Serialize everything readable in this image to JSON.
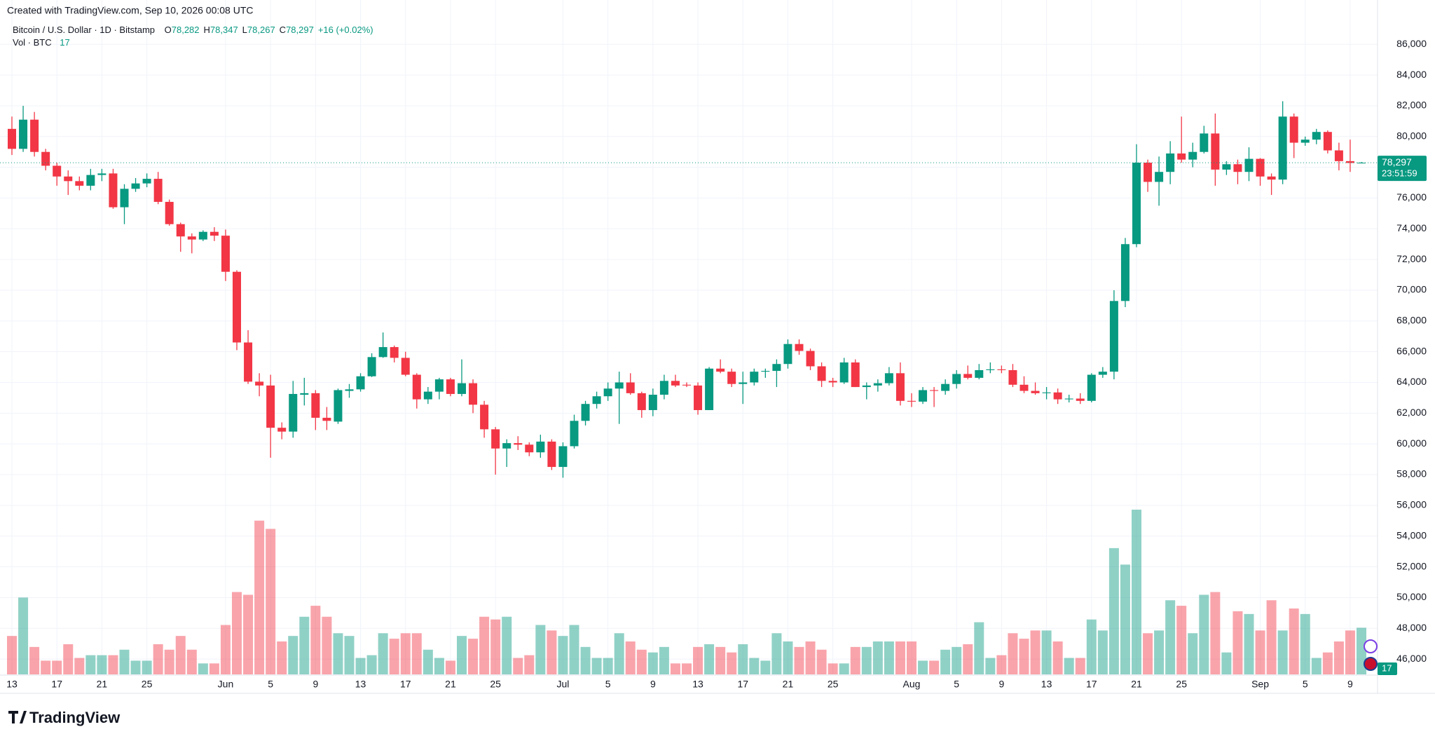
{
  "header": {
    "created": "Created with TradingView.com, Sep 10, 2026 00:08 UTC",
    "symbol": "Bitcoin / U.S. Dollar · 1D · Bitstamp",
    "ohlc": [
      {
        "key": "O",
        "value": "78,282"
      },
      {
        "key": "H",
        "value": "78,347"
      },
      {
        "key": "L",
        "value": "78,267"
      },
      {
        "key": "C",
        "value": "78,297"
      }
    ],
    "change": "+16 (+0.02%)",
    "volume_label": "Vol · BTC",
    "volume_value": "17"
  },
  "footer": {
    "brand": "TradingView"
  },
  "chart_data": {
    "type": "candlestick",
    "up_color": "#089981",
    "down_color": "#f23645",
    "grid": true,
    "categories": [
      "13",
      null,
      null,
      null,
      "17",
      null,
      null,
      null,
      "21",
      null,
      null,
      null,
      "25",
      null,
      null,
      null,
      null,
      null,
      null,
      "Jun",
      null,
      null,
      null,
      "5",
      null,
      null,
      null,
      "9",
      null,
      null,
      null,
      "13",
      null,
      null,
      null,
      "17",
      null,
      null,
      null,
      "21",
      null,
      null,
      null,
      "25",
      null,
      null,
      null,
      null,
      null,
      "Jul",
      null,
      null,
      null,
      "5",
      null,
      null,
      null,
      "9",
      null,
      null,
      null,
      "13",
      null,
      null,
      null,
      "17",
      null,
      null,
      null,
      "21",
      null,
      null,
      null,
      "25",
      null,
      null,
      null,
      null,
      null,
      null,
      "Aug",
      null,
      null,
      null,
      "5",
      null,
      null,
      null,
      "9",
      null,
      null,
      null,
      "13",
      null,
      null,
      null,
      "17",
      null,
      null,
      null,
      "21",
      null,
      null,
      null,
      "25",
      null,
      null,
      null,
      null,
      null,
      null,
      "Sep",
      null,
      null,
      null,
      "5",
      null,
      null,
      null,
      "9",
      null
    ],
    "open": [
      80500,
      79200,
      81100,
      79000,
      78100,
      77400,
      77100,
      76800,
      77500,
      77600,
      75400,
      76600,
      76950,
      77250,
      75750,
      74300,
      73500,
      73300,
      73800,
      73550,
      71200,
      66600,
      64050,
      63800,
      61050,
      60800,
      63200,
      63300,
      61700,
      61450,
      63450,
      63550,
      64400,
      65650,
      66300,
      65600,
      64500,
      62900,
      63400,
      64200,
      63250,
      63950,
      62550,
      60950,
      59700,
      60050,
      59950,
      59450,
      60150,
      58500,
      59850,
      61500,
      62600,
      63100,
      63600,
      64000,
      63300,
      62200,
      63200,
      64100,
      63850,
      63800,
      62200,
      64900,
      64700,
      63900,
      64000,
      64700,
      64750,
      65200,
      66500,
      66050,
      65050,
      64100,
      64000,
      65300,
      63700,
      63800,
      63950,
      64600,
      62800,
      62750,
      63500,
      63450,
      63900,
      64550,
      64300,
      64800,
      64850,
      64800,
      63850,
      63450,
      63300,
      63350,
      62900,
      62950,
      62800,
      64500,
      64700,
      69300,
      73000,
      78300,
      77050,
      77700,
      78900,
      78500,
      79000,
      80200,
      77850,
      78200,
      77700,
      78550,
      77400,
      77200,
      81300,
      79600,
      79800,
      80300,
      79100,
      78400,
      78282
    ],
    "high": [
      81300,
      82000,
      81600,
      79200,
      78300,
      77800,
      77400,
      77900,
      77900,
      77900,
      76900,
      77300,
      77600,
      77700,
      75900,
      74400,
      73700,
      73900,
      74100,
      73950,
      71300,
      67400,
      64600,
      64500,
      61400,
      64100,
      64300,
      63500,
      62400,
      63600,
      63900,
      64600,
      65900,
      67250,
      66400,
      66000,
      64600,
      63700,
      64300,
      64300,
      65500,
      64200,
      62800,
      61100,
      60300,
      60500,
      60100,
      60600,
      60300,
      60100,
      61900,
      62800,
      63400,
      64000,
      64700,
      64600,
      63400,
      63600,
      64500,
      64500,
      64000,
      64000,
      65000,
      65500,
      64900,
      64700,
      64900,
      64900,
      65500,
      66800,
      66800,
      66200,
      65300,
      64300,
      65600,
      65500,
      64000,
      64200,
      65000,
      65300,
      63300,
      63700,
      63700,
      64200,
      64800,
      65100,
      65200,
      65300,
      65100,
      65200,
      64400,
      64000,
      63700,
      63600,
      63200,
      63300,
      64600,
      65000,
      70000,
      73400,
      79500,
      78500,
      78700,
      79700,
      81300,
      79600,
      80700,
      81500,
      78400,
      78500,
      79300,
      78600,
      77600,
      82300,
      81500,
      80000,
      80500,
      80400,
      79600,
      79800,
      78347
    ],
    "low": [
      78800,
      79000,
      78700,
      77800,
      76800,
      76200,
      76500,
      76500,
      77100,
      75300,
      74300,
      76400,
      76700,
      75600,
      74200,
      72500,
      72400,
      73200,
      73200,
      70600,
      66100,
      63900,
      63100,
      59100,
      60300,
      60400,
      62500,
      60900,
      60900,
      61300,
      63000,
      63400,
      64350,
      65600,
      65300,
      64400,
      62300,
      62600,
      62900,
      63100,
      63100,
      62000,
      60400,
      58000,
      58500,
      59600,
      59200,
      59100,
      58300,
      57800,
      59700,
      61200,
      62300,
      62800,
      61300,
      63200,
      61700,
      61800,
      62900,
      63700,
      63700,
      61900,
      62200,
      64600,
      63700,
      62600,
      63800,
      64300,
      63700,
      64900,
      65800,
      64800,
      63700,
      63700,
      63900,
      63700,
      62900,
      63400,
      63800,
      62500,
      62400,
      62600,
      62400,
      63200,
      63600,
      64200,
      64200,
      64600,
      64600,
      63700,
      63300,
      63200,
      62900,
      62600,
      62700,
      62600,
      62700,
      64300,
      64200,
      68900,
      72800,
      76400,
      75500,
      76900,
      78300,
      78000,
      78900,
      76800,
      77500,
      76900,
      77100,
      76800,
      76200,
      76900,
      78600,
      79400,
      79500,
      78900,
      77800,
      77700,
      78267
    ],
    "close": [
      79200,
      81100,
      79000,
      78100,
      77400,
      77100,
      76800,
      77500,
      77600,
      75400,
      76600,
      76950,
      77250,
      75750,
      74300,
      73500,
      73300,
      73800,
      73550,
      71200,
      66600,
      64050,
      63800,
      61050,
      60800,
      63250,
      63300,
      61700,
      61500,
      63500,
      63550,
      64400,
      65650,
      66300,
      65600,
      64500,
      62900,
      63400,
      64200,
      63250,
      63950,
      62550,
      60950,
      59700,
      60050,
      59950,
      59450,
      60150,
      58500,
      59850,
      61500,
      62600,
      63100,
      63600,
      64000,
      63300,
      62200,
      63200,
      64100,
      63800,
      63800,
      62200,
      64900,
      64700,
      63900,
      64000,
      64700,
      64750,
      65200,
      66500,
      66050,
      65050,
      64100,
      64000,
      65300,
      63700,
      63800,
      63950,
      64600,
      62800,
      62750,
      63500,
      63450,
      63900,
      64550,
      64300,
      64800,
      64850,
      64800,
      63850,
      63450,
      63300,
      63350,
      62900,
      62950,
      62800,
      64500,
      64700,
      69300,
      73000,
      78300,
      77050,
      77700,
      78900,
      78500,
      79000,
      80200,
      77850,
      78200,
      77700,
      78550,
      77400,
      77200,
      81300,
      79600,
      79800,
      80300,
      79100,
      78400,
      78282,
      78297
    ],
    "volume": [
      14,
      28,
      10,
      5,
      5,
      11,
      6,
      7,
      7,
      7,
      9,
      5,
      5,
      11,
      9,
      14,
      9,
      4,
      4,
      18,
      30,
      29,
      56,
      53,
      12,
      14,
      21,
      25,
      21,
      15,
      14,
      6,
      7,
      15,
      13,
      15,
      15,
      9,
      6,
      5,
      14,
      13,
      21,
      20,
      21,
      6,
      7,
      18,
      16,
      14,
      18,
      10,
      6,
      6,
      15,
      12,
      9,
      8,
      10,
      4,
      4,
      10,
      11,
      10,
      8,
      11,
      6,
      5,
      15,
      12,
      10,
      12,
      9,
      4,
      4,
      10,
      10,
      12,
      12,
      12,
      12,
      5,
      5,
      9,
      10,
      11,
      19,
      6,
      7,
      15,
      13,
      16,
      16,
      12,
      6,
      6,
      20,
      16,
      46,
      40,
      60,
      15,
      16,
      27,
      25,
      15,
      29,
      30,
      8,
      23,
      22,
      16,
      27,
      16,
      24,
      22,
      6,
      8,
      12,
      16,
      17
    ],
    "ylim": [
      45000,
      87700
    ],
    "yticks": [
      {
        "value": 46000,
        "label": "46,000"
      },
      {
        "value": 48000,
        "label": "48,000"
      },
      {
        "value": 50000,
        "label": "50,000"
      },
      {
        "value": 52000,
        "label": "52,000"
      },
      {
        "value": 54000,
        "label": "54,000"
      },
      {
        "value": 56000,
        "label": "56,000"
      },
      {
        "value": 58000,
        "label": "58,000"
      },
      {
        "value": 60000,
        "label": "60,000"
      },
      {
        "value": 62000,
        "label": "62,000"
      },
      {
        "value": 64000,
        "label": "64,000"
      },
      {
        "value": 66000,
        "label": "66,000"
      },
      {
        "value": 68000,
        "label": "68,000"
      },
      {
        "value": 70000,
        "label": "70,000"
      },
      {
        "value": 72000,
        "label": "72,000"
      },
      {
        "value": 74000,
        "label": "74,000"
      },
      {
        "value": 76000,
        "label": "76,000"
      },
      {
        "value": 78000,
        "label": "78,000"
      },
      {
        "value": 80000,
        "label": "80,000"
      },
      {
        "value": 82000,
        "label": "82,000"
      },
      {
        "value": 84000,
        "label": "84,000"
      },
      {
        "value": 86000,
        "label": "86,000"
      }
    ],
    "last_price": {
      "value": 78297,
      "label": "78,297"
    },
    "countdown": "23:51:59"
  }
}
